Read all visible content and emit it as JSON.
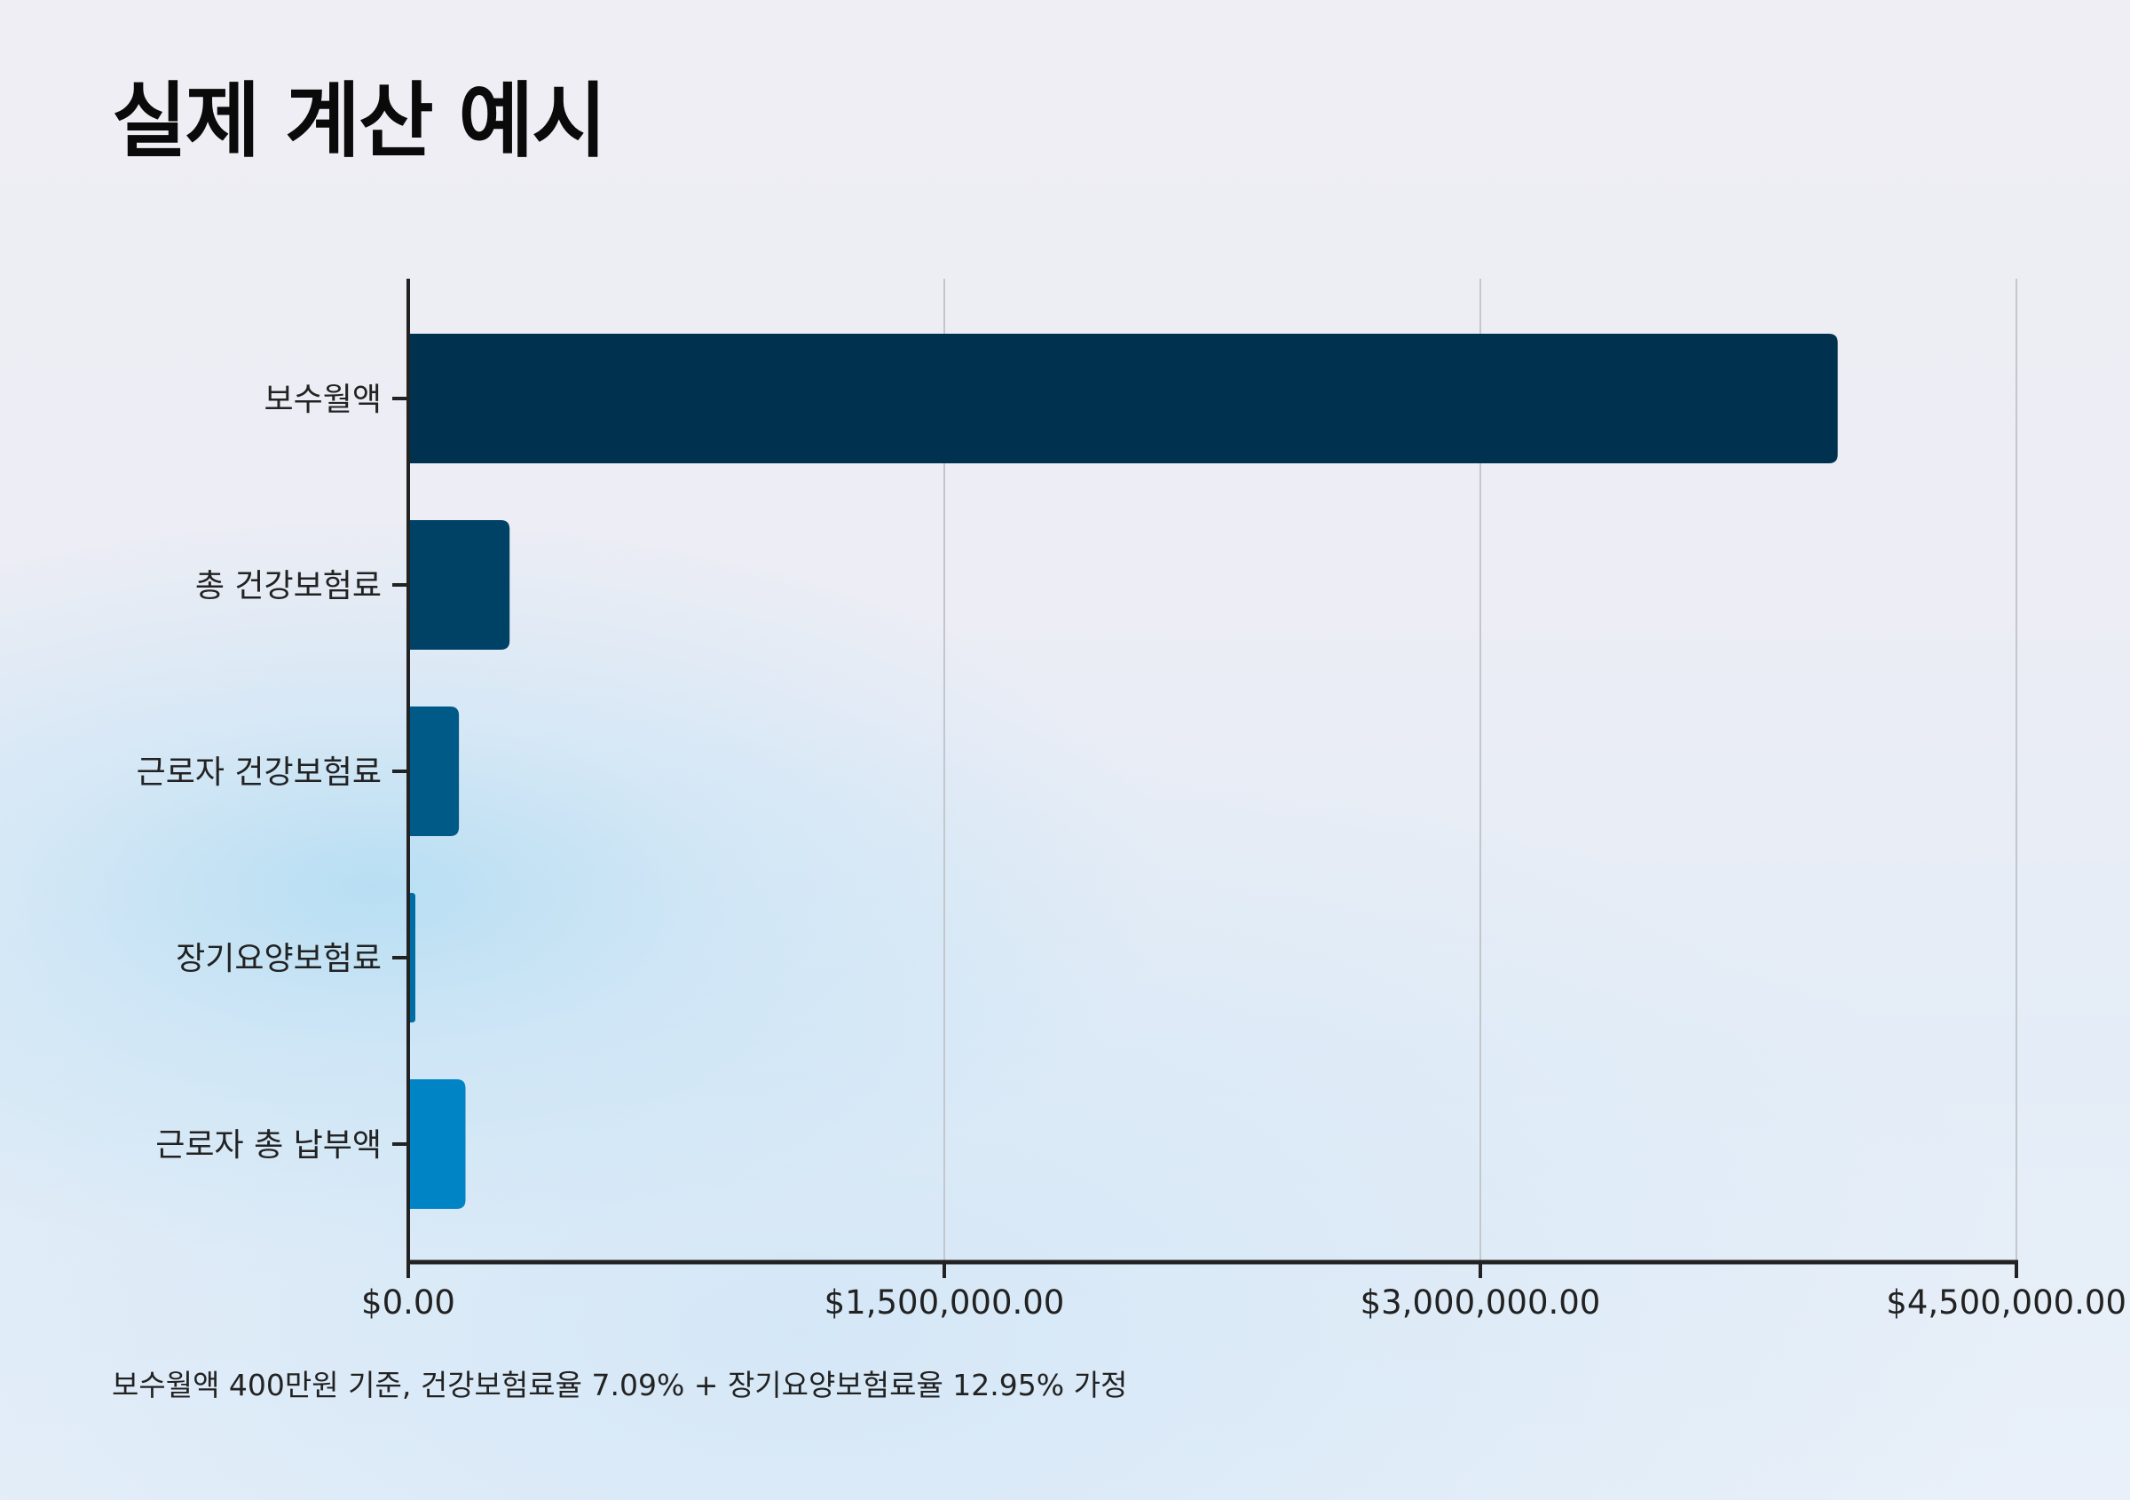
{
  "title": "실제 계산 예시",
  "footnote": "보수월액 400만원 기준, 건강보험료율 7.09% + 장기요양보험료율 12.95% 가정",
  "chart_data": {
    "type": "bar",
    "orientation": "horizontal",
    "categories": [
      "보수월액",
      "총 건강보험료",
      "근로자 건강보험료",
      "장기요양보험료",
      "근로자 총 납부액"
    ],
    "values": [
      4000000,
      283600,
      141800,
      18363,
      160163
    ],
    "colors": [
      "#00324f",
      "#004266",
      "#005a87",
      "#006da3",
      "#0084c5"
    ],
    "xlim": [
      0,
      4500000
    ],
    "xticks": [
      0,
      1500000,
      3000000,
      4500000
    ],
    "xtick_labels": [
      "$0.00",
      "$1,500,000.00",
      "$3,000,000.00",
      "$4,500,000.00"
    ],
    "grid": "vertical",
    "xlabel": "",
    "ylabel": ""
  }
}
